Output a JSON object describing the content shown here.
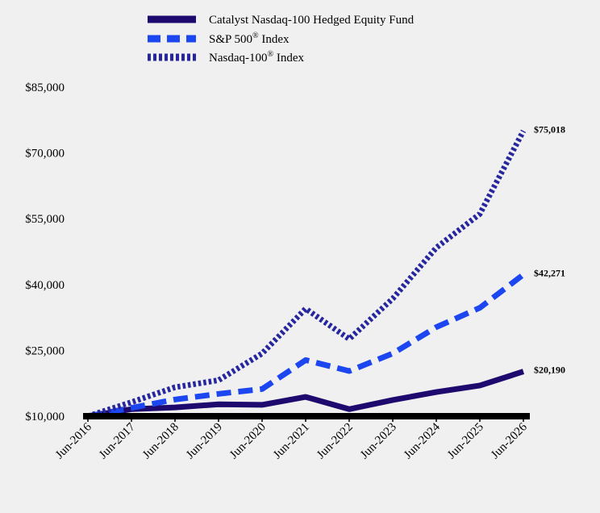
{
  "chart_data": {
    "type": "line",
    "x": [
      "Jun-2016",
      "Jun-2017",
      "Jun-2018",
      "Jun-2019",
      "Jun-2020",
      "Jun-2021",
      "Jun-2022",
      "Jun-2023",
      "Jun-2024",
      "Jun-2025",
      "Jun-2026"
    ],
    "ylim": [
      10000,
      85000
    ],
    "yticks": [
      10000,
      25000,
      40000,
      55000,
      70000,
      85000
    ],
    "ytick_labels": [
      "$10,000",
      "$25,000",
      "$40,000",
      "$55,000",
      "$70,000",
      "$85,000"
    ],
    "legend_position": "top",
    "grid": false,
    "series": [
      {
        "name": "Catalyst Nasdaq-100 Hedged Equity Fund",
        "sup": "",
        "suffix": "",
        "color": "#1e0a6e",
        "style": "solid",
        "values": [
          10000,
          11600,
          12000,
          12700,
          12600,
          14400,
          11600,
          13700,
          15500,
          17000,
          20190
        ],
        "end_label": "$20,190"
      },
      {
        "name": "S&P 500",
        "sup": "®",
        "suffix": " Index",
        "color": "#1c46f0",
        "style": "dashed",
        "values": [
          10000,
          11900,
          13800,
          15100,
          16200,
          22800,
          20300,
          24300,
          30300,
          34700,
          42271
        ],
        "end_label": "$42,271"
      },
      {
        "name": "Nasdaq-100",
        "sup": "®",
        "suffix": " Index",
        "color": "#26269e",
        "style": "dotted",
        "values": [
          10000,
          13200,
          16600,
          18200,
          24300,
          34500,
          27600,
          36800,
          48400,
          56100,
          75018
        ],
        "end_label": "$75,018"
      }
    ]
  }
}
